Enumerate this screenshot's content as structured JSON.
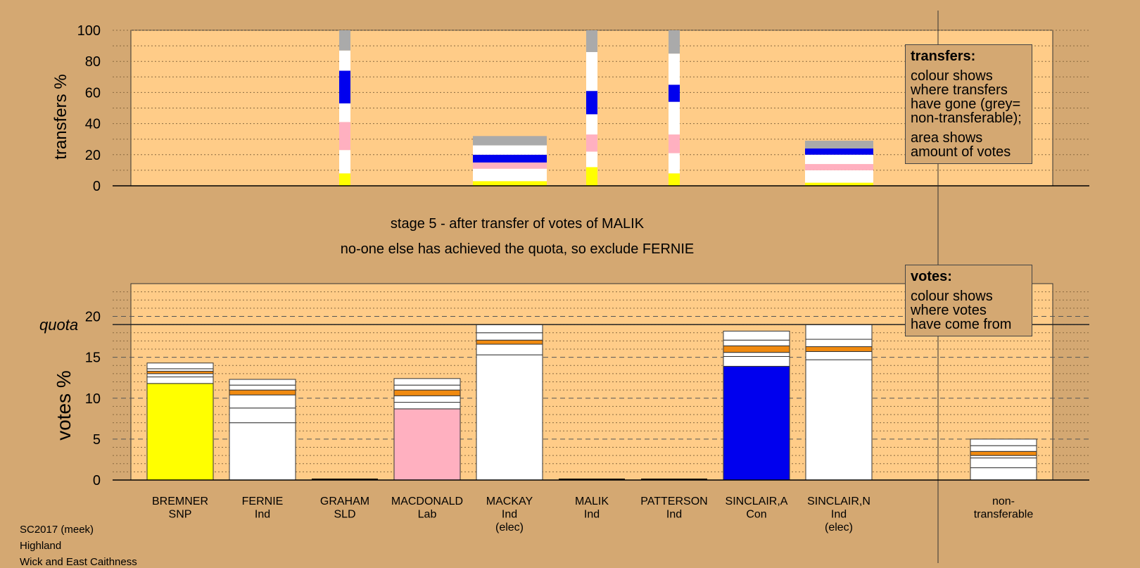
{
  "chart_data": [
    {
      "type": "bar",
      "stacked": true,
      "ylabel": "transfers %",
      "ylim": [
        0,
        100
      ],
      "yticks": [
        0,
        20,
        40,
        60,
        80,
        100
      ],
      "columns": [
        {
          "candidate": "GRAHAM",
          "segments": [
            {
              "color": "#FFFF00",
              "value": 8
            },
            {
              "color": "#FFFFFF",
              "value": 15
            },
            {
              "color": "#FFB0C0",
              "value": 18
            },
            {
              "color": "#FFFFFF",
              "value": 12
            },
            {
              "color": "#0000EE",
              "value": 21
            },
            {
              "color": "#FFFFFF",
              "value": 13
            },
            {
              "color": "#AAAAAA",
              "value": 13
            }
          ]
        },
        {
          "candidate": "MALIK",
          "segments": [
            {
              "color": "#FFFF00",
              "value": 12
            },
            {
              "color": "#FFFFFF",
              "value": 10
            },
            {
              "color": "#FFB0C0",
              "value": 11
            },
            {
              "color": "#FFFFFF",
              "value": 13
            },
            {
              "color": "#0000EE",
              "value": 15
            },
            {
              "color": "#FFFFFF",
              "value": 25
            },
            {
              "color": "#AAAAAA",
              "value": 14
            }
          ]
        },
        {
          "candidate": "PATTERSON",
          "segments": [
            {
              "color": "#FFFF00",
              "value": 8
            },
            {
              "color": "#FFFFFF",
              "value": 13
            },
            {
              "color": "#FFB0C0",
              "value": 12
            },
            {
              "color": "#FFFFFF",
              "value": 21
            },
            {
              "color": "#0000EE",
              "value": 11
            },
            {
              "color": "#FFFFFF",
              "value": 20
            },
            {
              "color": "#AAAAAA",
              "value": 15
            }
          ]
        }
      ],
      "wide_bars": [
        {
          "candidate": "MACKAY",
          "segments": [
            {
              "color": "#FFFF00",
              "value": 3
            },
            {
              "color": "#FFFFFF",
              "value": 8
            },
            {
              "color": "#FFB0C0",
              "value": 4
            },
            {
              "color": "#0000EE",
              "value": 5
            },
            {
              "color": "#FFFFFF",
              "value": 6
            },
            {
              "color": "#AAAAAA",
              "value": 6
            }
          ]
        },
        {
          "candidate": "SINCLAIR,N",
          "segments": [
            {
              "color": "#FFFF00",
              "value": 2
            },
            {
              "color": "#FFFFFF",
              "value": 8
            },
            {
              "color": "#FFB0C0",
              "value": 4
            },
            {
              "color": "#FFFFFF",
              "value": 6
            },
            {
              "color": "#0000EE",
              "value": 4
            },
            {
              "color": "#AAAAAA",
              "value": 5
            }
          ]
        }
      ]
    },
    {
      "type": "bar",
      "stacked": true,
      "ylabel": "votes %",
      "ylim": [
        0,
        24
      ],
      "yticks": [
        0,
        5,
        10,
        15,
        20
      ],
      "quota": 19.0,
      "quota_label": "quota",
      "categories": [
        {
          "name": "BREMNER",
          "party": "SNP",
          "note": ""
        },
        {
          "name": "FERNIE",
          "party": "Ind",
          "note": ""
        },
        {
          "name": "GRAHAM",
          "party": "SLD",
          "note": ""
        },
        {
          "name": "MACDONALD",
          "party": "Lab",
          "note": ""
        },
        {
          "name": "MACKAY",
          "party": "Ind",
          "note": "(elec)"
        },
        {
          "name": "MALIK",
          "party": "Ind",
          "note": ""
        },
        {
          "name": "PATTERSON",
          "party": "Ind",
          "note": ""
        },
        {
          "name": "SINCLAIR,A",
          "party": "Con",
          "note": ""
        },
        {
          "name": "SINCLAIR,N",
          "party": "Ind",
          "note": "(elec)"
        },
        {
          "name": "non-",
          "party": "transferable",
          "note": ""
        }
      ],
      "stacks": [
        [
          {
            "color": "#FFFF00",
            "value": 11.8
          },
          {
            "color": "#FFFFFF",
            "value": 0.8
          },
          {
            "color": "#FFFFFF",
            "value": 0.4
          },
          {
            "color": "#F08A10",
            "value": 0.3
          },
          {
            "color": "#FFFFFF",
            "value": 0.3
          },
          {
            "color": "#FFFFFF",
            "value": 0.7
          }
        ],
        [
          {
            "color": "#FFFFFF",
            "value": 7.0
          },
          {
            "color": "#FFFFFF",
            "value": 1.8
          },
          {
            "color": "#FFFFFF",
            "value": 1.6
          },
          {
            "color": "#F08A10",
            "value": 0.6
          },
          {
            "color": "#FFFFFF",
            "value": 0.6
          },
          {
            "color": "#FFFFFF",
            "value": 0.7
          }
        ],
        [],
        [
          {
            "color": "#FFB0C0",
            "value": 8.7
          },
          {
            "color": "#FFFFFF",
            "value": 0.8
          },
          {
            "color": "#FFFFFF",
            "value": 0.8
          },
          {
            "color": "#F08A10",
            "value": 0.7
          },
          {
            "color": "#FFFFFF",
            "value": 0.6
          },
          {
            "color": "#FFFFFF",
            "value": 0.8
          }
        ],
        [
          {
            "color": "#FFFFFF",
            "value": 15.3
          },
          {
            "color": "#FFFFFF",
            "value": 1.3
          },
          {
            "color": "#F08A10",
            "value": 0.5
          },
          {
            "color": "#FFFFFF",
            "value": 0.9
          },
          {
            "color": "#FFFFFF",
            "value": 1.0
          }
        ],
        [],
        [],
        [
          {
            "color": "#0000EE",
            "value": 13.9
          },
          {
            "color": "#FFFFFF",
            "value": 1.2
          },
          {
            "color": "#FFFFFF",
            "value": 0.5
          },
          {
            "color": "#F08A10",
            "value": 0.8
          },
          {
            "color": "#FFFFFF",
            "value": 0.7
          },
          {
            "color": "#FFFFFF",
            "value": 1.1
          }
        ],
        [
          {
            "color": "#FFFFFF",
            "value": 14.7
          },
          {
            "color": "#FFFFFF",
            "value": 1.0
          },
          {
            "color": "#F08A10",
            "value": 0.6
          },
          {
            "color": "#FFFFFF",
            "value": 0.9
          },
          {
            "color": "#FFFFFF",
            "value": 1.8
          }
        ],
        [
          {
            "color": "#FFFFFF",
            "value": 1.5
          },
          {
            "color": "#FFFFFF",
            "value": 1.2
          },
          {
            "color": "#FFFFFF",
            "value": 0.3
          },
          {
            "color": "#F08A10",
            "value": 0.5
          },
          {
            "color": "#FFFFFF",
            "value": 0.7
          },
          {
            "color": "#FFFFFF",
            "value": 0.8
          }
        ]
      ]
    }
  ],
  "legend_transfers": {
    "title": "transfers:",
    "lines": [
      "colour shows",
      "where transfers",
      "have gone (grey=",
      "non-transferable);"
    ],
    "lines2": [
      "area shows",
      "amount of votes"
    ]
  },
  "legend_votes": {
    "title": "votes:",
    "lines": [
      "colour shows",
      "where votes",
      "have come from"
    ]
  },
  "stage": {
    "line1": "stage 5 - after transfer of votes of MALIK",
    "line2": "no-one else has achieved the quota, so exclude FERNIE"
  },
  "footer": {
    "line1": "SC2017 (meek)",
    "line2": "Highland",
    "line3": "Wick and East Caithness"
  },
  "colors": {
    "background": "#D4A872",
    "plot_area": "#FFCC88",
    "snp": "#FFFF00",
    "con": "#0000EE",
    "lab": "#FFB0C0",
    "ind": "#FFFFFF",
    "sld": "#F08A10",
    "non_transferable": "#AAAAAA"
  }
}
